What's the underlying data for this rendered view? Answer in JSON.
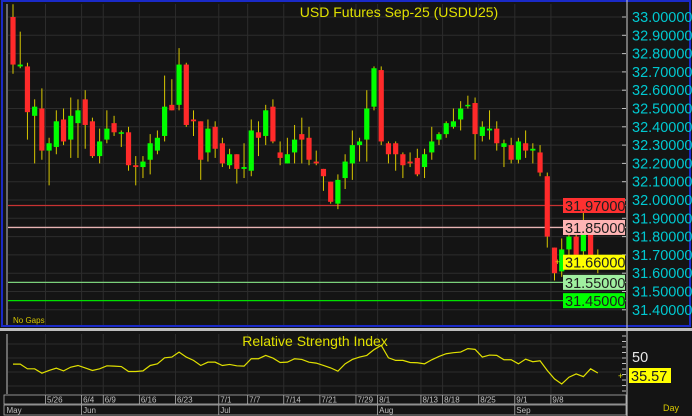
{
  "chart_data": [
    {
      "type": "candlestick",
      "title": "USD Futures Sep-25 (USDU25)",
      "note": "No Gaps",
      "ylim": [
        31.4,
        33.0
      ],
      "y_ticks": [
        "33.00000",
        "32.90000",
        "32.80000",
        "32.70000",
        "32.60000",
        "32.50000",
        "32.40000",
        "32.30000",
        "32.20000",
        "32.10000",
        "32.00000",
        "31.90000",
        "31.80000",
        "31.70000",
        "31.60000",
        "31.50000",
        "31.40000"
      ],
      "grid": true,
      "ohlc": [
        [
          33.0,
          33.07,
          32.69,
          32.74
        ],
        [
          32.73,
          32.92,
          32.72,
          32.74
        ],
        [
          32.73,
          32.75,
          32.33,
          32.48
        ],
        [
          32.46,
          32.55,
          32.2,
          32.51
        ],
        [
          32.5,
          32.61,
          32.22,
          32.27
        ],
        [
          32.27,
          32.34,
          32.08,
          32.31
        ],
        [
          32.29,
          32.49,
          32.25,
          32.43
        ],
        [
          32.44,
          32.5,
          32.3,
          32.32
        ],
        [
          32.33,
          32.56,
          32.23,
          32.46
        ],
        [
          32.42,
          32.55,
          32.23,
          32.49
        ],
        [
          32.55,
          32.6,
          32.28,
          32.41
        ],
        [
          32.43,
          32.45,
          32.23,
          32.24
        ],
        [
          32.24,
          32.39,
          32.2,
          32.32
        ],
        [
          32.33,
          32.49,
          32.31,
          32.39
        ],
        [
          32.42,
          32.46,
          32.35,
          32.37
        ],
        [
          32.37,
          32.38,
          32.29,
          32.37
        ],
        [
          32.37,
          32.4,
          32.16,
          32.19
        ],
        [
          32.19,
          32.24,
          32.08,
          32.18
        ],
        [
          32.18,
          32.24,
          32.12,
          32.21
        ],
        [
          32.22,
          32.36,
          32.14,
          32.31
        ],
        [
          32.27,
          32.38,
          32.25,
          32.34
        ],
        [
          32.35,
          32.68,
          32.32,
          32.51
        ],
        [
          32.52,
          32.66,
          32.49,
          32.49
        ],
        [
          32.52,
          32.83,
          32.49,
          32.74
        ],
        [
          32.74,
          32.75,
          32.4,
          32.41
        ],
        [
          32.44,
          32.49,
          32.35,
          32.43
        ],
        [
          32.43,
          32.43,
          32.11,
          32.22
        ],
        [
          32.26,
          32.44,
          32.21,
          32.39
        ],
        [
          32.4,
          32.43,
          32.23,
          32.28
        ],
        [
          32.31,
          32.34,
          32.18,
          32.2
        ],
        [
          32.19,
          32.28,
          32.17,
          32.25
        ],
        [
          32.25,
          32.25,
          32.09,
          32.17
        ],
        [
          32.17,
          32.31,
          32.12,
          32.18
        ],
        [
          32.16,
          32.44,
          32.13,
          32.38
        ],
        [
          32.37,
          32.43,
          32.24,
          32.34
        ],
        [
          32.35,
          32.52,
          32.3,
          32.49
        ],
        [
          32.51,
          32.55,
          32.31,
          32.32
        ],
        [
          32.26,
          32.32,
          32.19,
          32.23
        ],
        [
          32.2,
          32.34,
          32.2,
          32.25
        ],
        [
          32.26,
          32.41,
          32.2,
          32.33
        ],
        [
          32.36,
          32.45,
          32.2,
          32.33
        ],
        [
          32.34,
          32.4,
          32.19,
          32.22
        ],
        [
          32.21,
          32.27,
          32.19,
          32.2
        ],
        [
          32.17,
          32.17,
          32.05,
          32.13
        ],
        [
          32.1,
          32.1,
          31.98,
          31.99
        ],
        [
          31.98,
          32.14,
          31.95,
          32.11
        ],
        [
          32.12,
          32.25,
          32.06,
          32.21
        ],
        [
          32.2,
          32.38,
          32.11,
          32.3
        ],
        [
          32.3,
          32.34,
          32.21,
          32.32
        ],
        [
          32.33,
          32.6,
          32.21,
          32.5
        ],
        [
          32.51,
          32.73,
          32.49,
          32.72
        ],
        [
          32.71,
          32.73,
          32.3,
          32.32
        ],
        [
          32.31,
          32.32,
          32.2,
          32.25
        ],
        [
          32.31,
          32.32,
          32.16,
          32.25
        ],
        [
          32.25,
          32.26,
          32.12,
          32.19
        ],
        [
          32.21,
          32.26,
          32.18,
          32.2
        ],
        [
          32.23,
          32.28,
          32.13,
          32.14
        ],
        [
          32.18,
          32.28,
          32.12,
          32.25
        ],
        [
          32.26,
          32.4,
          32.22,
          32.32
        ],
        [
          32.33,
          32.37,
          32.3,
          32.36
        ],
        [
          32.36,
          32.43,
          32.34,
          32.42
        ],
        [
          32.4,
          32.5,
          32.39,
          32.43
        ],
        [
          32.44,
          32.54,
          32.38,
          32.5
        ],
        [
          32.52,
          32.57,
          32.5,
          32.52
        ],
        [
          32.53,
          32.56,
          32.22,
          32.36
        ],
        [
          32.35,
          32.43,
          32.32,
          32.4
        ],
        [
          32.38,
          32.49,
          32.33,
          32.39
        ],
        [
          32.39,
          32.43,
          32.27,
          32.31
        ],
        [
          32.29,
          32.33,
          32.18,
          32.31
        ],
        [
          32.3,
          32.34,
          32.2,
          32.22
        ],
        [
          32.22,
          32.34,
          32.2,
          32.32
        ],
        [
          32.31,
          32.38,
          32.23,
          32.27
        ],
        [
          32.27,
          32.31,
          32.2,
          32.28
        ],
        [
          32.26,
          32.3,
          32.13,
          32.15
        ],
        [
          32.13,
          32.15,
          31.74,
          31.8
        ],
        [
          31.74,
          31.74,
          31.56,
          31.6
        ],
        [
          31.61,
          31.79,
          31.58,
          31.73
        ],
        [
          31.73,
          31.81,
          31.67,
          31.8
        ],
        [
          31.8,
          31.81,
          31.62,
          31.7
        ],
        [
          31.72,
          31.93,
          31.67,
          31.86
        ],
        [
          31.85,
          31.86,
          31.64,
          31.66
        ],
        [
          31.66,
          31.73,
          31.6,
          31.665
        ]
      ],
      "levels": [
        {
          "value": 31.97,
          "label": "31.97000",
          "line_color": "#c83232",
          "box_color": "#ff3030"
        },
        {
          "value": 31.85,
          "label": "31.85000",
          "line_color": "#e8b4b4",
          "box_color": "#ffb4b4"
        },
        {
          "value": 31.55,
          "label": "31.55000",
          "line_color": "#7ad07a",
          "box_color": "#a0f0a0"
        },
        {
          "value": 31.45,
          "label": "31.45000",
          "line_color": "#00e000",
          "box_color": "#00ff00"
        }
      ],
      "last_price": {
        "value": 31.66,
        "label": "31.66000",
        "box_color": "#ffff00"
      },
      "colors": {
        "up": "#00ff00",
        "down": "#ff2a2a",
        "wick": "#d8c800"
      }
    },
    {
      "type": "line",
      "title": "Relative Strength Index",
      "ylim": [
        15,
        75
      ],
      "y_tick_label": "50",
      "last_value": "35.57",
      "color": "#e0e000",
      "values": [
        44.1,
        44.1,
        39.6,
        39.6,
        35.4,
        38,
        40.2,
        37.6,
        41.2,
        42.8,
        40.5,
        38,
        39.6,
        42.5,
        42.2,
        41.8,
        37,
        37,
        37.6,
        42.8,
        44.4,
        50.2,
        50.9,
        55.7,
        50.9,
        47.7,
        42.8,
        46,
        46,
        42.8,
        43.8,
        42.5,
        42.2,
        49.3,
        49.3,
        52.5,
        49.9,
        45.7,
        46,
        49.3,
        48.6,
        46,
        45.1,
        42.8,
        40.5,
        37.3,
        44.4,
        48.6,
        50.9,
        52.5,
        58,
        62.2,
        50.2,
        47.7,
        47.7,
        45.7,
        45.4,
        44.4,
        48.3,
        51.5,
        54.1,
        55.1,
        55.7,
        59,
        58.3,
        50.9,
        52.8,
        52.5,
        48.3,
        48.3,
        44.4,
        48.9,
        46.4,
        47.3,
        38,
        29.9,
        25,
        31.5,
        34.7,
        32.1,
        39.6,
        35.57
      ]
    }
  ],
  "x_axis": {
    "day_ticks": [
      "5/26",
      "6/4",
      "6/9",
      "6/16",
      "6/23",
      "7/1",
      "7/7",
      "7/14",
      "7/21",
      "7/29",
      "8/1",
      "8/13",
      "8/18",
      "8/25",
      "9/1",
      "9/8"
    ],
    "months": [
      "May",
      "Jun",
      "Jul",
      "Aug",
      "Sep"
    ],
    "interval": "Day"
  }
}
